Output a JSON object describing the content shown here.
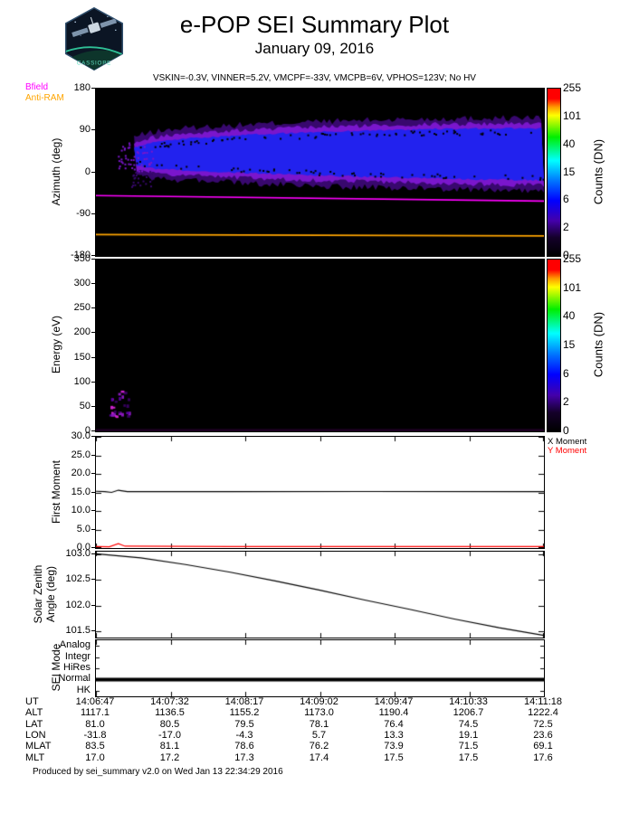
{
  "header": {
    "title": "e-POP SEI Summary Plot",
    "date": "January 09, 2016",
    "settings_line": "VSKIN=-0.3V, VINNER=5.2V, VMCPF=-33V, VMCPB=6V, VPHOS=123V; No HV",
    "mission_patch_text": "CASSIOPE"
  },
  "colorbar": {
    "title": "Counts (DN)",
    "tick_labels": [
      "255",
      "101",
      "40",
      "15",
      "6",
      "2",
      "0"
    ]
  },
  "panels": {
    "azimuth": {
      "ylabel": "Azimuth (deg)",
      "ytick_labels": [
        "180",
        "90",
        "0",
        "-90",
        "-180"
      ],
      "legend": [
        {
          "label": "Bfield",
          "color": "#ff00ff"
        },
        {
          "label": "Anti-RAM",
          "color": "#ffa500"
        }
      ]
    },
    "energy": {
      "ylabel": "Energy (eV)",
      "ytick_labels": [
        "350",
        "300",
        "250",
        "200",
        "150",
        "100",
        "50",
        "0"
      ]
    },
    "first_moment": {
      "ylabel": "First Moment",
      "ytick_labels": [
        "30.0",
        "25.0",
        "20.0",
        "15.0",
        "10.0",
        "5.0",
        "0.0"
      ],
      "legend": [
        {
          "label": "X Moment",
          "color": "#000000"
        },
        {
          "label": "Y Moment",
          "color": "#ff0000"
        }
      ]
    },
    "sza": {
      "ylabel": "Solar Zenith Angle (deg)",
      "ytick_labels": [
        "103.0",
        "102.5",
        "102.0",
        "101.5"
      ]
    },
    "mode": {
      "ylabel": "SEI Mode",
      "categories": [
        "Analog",
        "Integr",
        "HiRes",
        "Normal",
        "HK"
      ]
    }
  },
  "chart_data": [
    {
      "type": "heatmap",
      "name": "azimuth_time_spectrogram",
      "ylabel": "Azimuth (deg)",
      "ylim": [
        -180,
        180
      ],
      "yticks": [
        180,
        90,
        0,
        -90,
        -180
      ],
      "x_range_ut": [
        "14:06:47",
        "14:11:18"
      ],
      "color_scale": {
        "label": "Counts (DN)",
        "ticks": [
          255,
          101,
          40,
          15,
          6,
          2,
          0
        ],
        "scale": "log"
      },
      "flux_region": {
        "x_onset_frac": 0.085,
        "outline": [
          {
            "x": 0.085,
            "top": 52,
            "bottom": 18
          },
          {
            "x": 0.13,
            "top": 63,
            "bottom": 10
          },
          {
            "x": 0.2,
            "top": 71,
            "bottom": 6
          },
          {
            "x": 0.35,
            "top": 79,
            "bottom": 0
          },
          {
            "x": 0.5,
            "top": 85,
            "bottom": -5
          },
          {
            "x": 0.7,
            "top": 90,
            "bottom": -10
          },
          {
            "x": 0.85,
            "top": 92,
            "bottom": -13
          },
          {
            "x": 1.0,
            "top": 93,
            "bottom": -15
          }
        ],
        "core_color": "#2222ee",
        "fringe_colors": [
          "#38086e",
          "#7a16cc"
        ]
      },
      "bfield_trace": {
        "label": "Bfield",
        "color": "#ff00ff",
        "azimuth_start": -50,
        "azimuth_end": -62
      },
      "anti_ram_trace": {
        "label": "Anti-RAM",
        "color": "#ffa500",
        "azimuth_start": -134,
        "azimuth_end": -137
      }
    },
    {
      "type": "heatmap",
      "name": "energy_time_spectrogram",
      "ylabel": "Energy (eV)",
      "ylim": [
        0,
        350
      ],
      "yticks": [
        350,
        300,
        250,
        200,
        150,
        100,
        50,
        0
      ],
      "x_range_ut": [
        "14:06:47",
        "14:11:18"
      ],
      "color_scale": {
        "label": "Counts (DN)",
        "ticks": [
          255,
          101,
          40,
          15,
          6,
          2,
          0
        ],
        "scale": "log"
      },
      "low_energy_burst": {
        "x_frac_range": [
          0.03,
          0.075
        ],
        "energy_range": [
          30,
          85
        ],
        "colors": [
          "#cc22cc",
          "#8818bb",
          "#5a00a0",
          "#36005e"
        ]
      },
      "baseline_band": {
        "energy_range": [
          0,
          5
        ],
        "color": "#1c0022"
      }
    },
    {
      "type": "line",
      "name": "first_moment",
      "ylabel": "First Moment",
      "ylim": [
        0,
        30
      ],
      "yticks": [
        30,
        25,
        20,
        15,
        10,
        5,
        0
      ],
      "series": [
        {
          "name": "X Moment",
          "color": "#000000",
          "width": 1.2,
          "points": [
            [
              0,
              15.3
            ],
            [
              0.02,
              15.2
            ],
            [
              0.035,
              15.0
            ],
            [
              0.05,
              15.6
            ],
            [
              0.07,
              15.2
            ],
            [
              0.3,
              15.2
            ],
            [
              0.6,
              15.25
            ],
            [
              1,
              15.2
            ]
          ]
        },
        {
          "name": "Y Moment",
          "color": "#ff0000",
          "width": 1.2,
          "points": [
            [
              0,
              0.4
            ],
            [
              0.03,
              0.35
            ],
            [
              0.05,
              1.2
            ],
            [
              0.065,
              0.5
            ],
            [
              0.3,
              0.4
            ],
            [
              1,
              0.4
            ]
          ]
        }
      ]
    },
    {
      "type": "line",
      "name": "solar_zenith_angle",
      "ylabel": "Solar Zenith Angle (deg)",
      "ylim": [
        101.38,
        103.05
      ],
      "yticks": [
        103.0,
        102.5,
        102.0,
        101.5
      ],
      "series": [
        {
          "name": "Solar Zenith Angle",
          "color": "#000000",
          "width": 1.2,
          "points": [
            [
              0,
              103.01
            ],
            [
              0.1,
              102.93
            ],
            [
              0.2,
              102.8
            ],
            [
              0.3,
              102.65
            ],
            [
              0.4,
              102.48
            ],
            [
              0.5,
              102.3
            ],
            [
              0.6,
              102.11
            ],
            [
              0.7,
              101.93
            ],
            [
              0.8,
              101.74
            ],
            [
              0.9,
              101.57
            ],
            [
              1,
              101.42
            ]
          ]
        }
      ]
    },
    {
      "type": "line",
      "name": "sei_mode",
      "ylabel": "SEI Mode",
      "categories": [
        "Analog",
        "Integr",
        "HiRes",
        "Normal",
        "HK"
      ],
      "series": [
        {
          "name": "SEI Mode",
          "value": "Normal",
          "color": "#000000",
          "width": 4,
          "points": [
            [
              0,
              "Normal"
            ],
            [
              1,
              "Normal"
            ]
          ]
        }
      ]
    },
    {
      "type": "table",
      "name": "ephemeris",
      "rows": [
        {
          "label": "UT",
          "values": [
            "14:06:47",
            "14:07:32",
            "14:08:17",
            "14:09:02",
            "14:09:47",
            "14:10:33",
            "14:11:18"
          ]
        },
        {
          "label": "ALT",
          "values": [
            "1117.1",
            "1136.5",
            "1155.2",
            "1173.0",
            "1190.4",
            "1206.7",
            "1222.4"
          ]
        },
        {
          "label": "LAT",
          "values": [
            "81.0",
            "80.5",
            "79.5",
            "78.1",
            "76.4",
            "74.5",
            "72.5"
          ]
        },
        {
          "label": "LON",
          "values": [
            "-31.8",
            "-17.0",
            "-4.3",
            "5.7",
            "13.3",
            "19.1",
            "23.6"
          ]
        },
        {
          "label": "MLAT",
          "values": [
            "83.5",
            "81.1",
            "78.6",
            "76.2",
            "73.9",
            "71.5",
            "69.1"
          ]
        },
        {
          "label": "MLT",
          "values": [
            "17.0",
            "17.2",
            "17.3",
            "17.4",
            "17.5",
            "17.5",
            "17.6"
          ]
        }
      ]
    }
  ],
  "footer": {
    "produced_by": "Produced by sei_summary v2.0 on Wed Jan 13 22:34:29 2016"
  }
}
